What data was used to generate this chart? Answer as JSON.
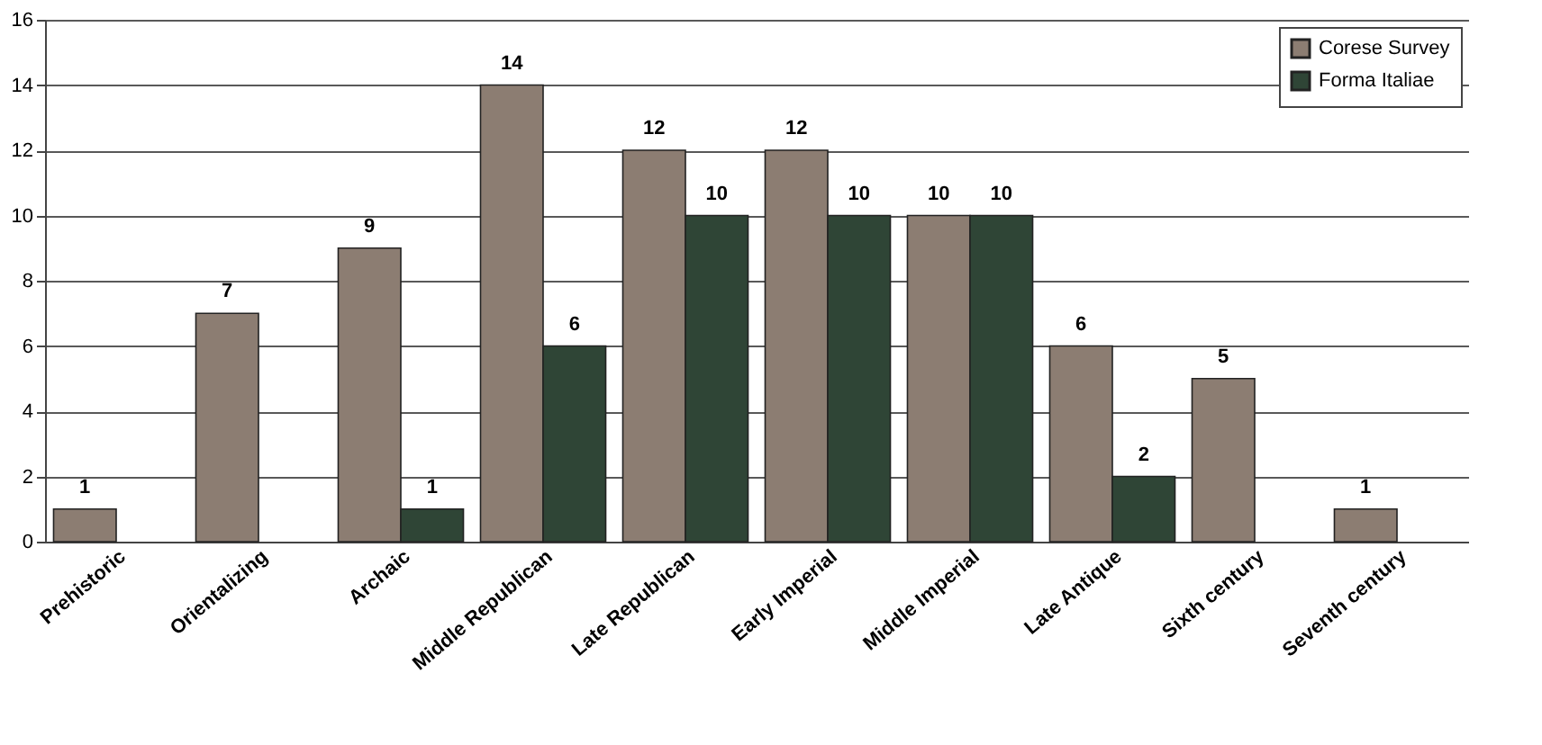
{
  "chart_data": {
    "type": "bar",
    "categories": [
      "Prehistoric",
      "Orientalizing",
      "Archaic",
      "Middle Republican",
      "Late Republican",
      "Early Imperial",
      "Middle Imperial",
      "Late Antique",
      "Sixth century",
      "Seventh century"
    ],
    "series": [
      {
        "name": "Corese Survey",
        "color": "#8c7d72",
        "values": [
          1,
          7,
          9,
          14,
          12,
          12,
          10,
          6,
          5,
          1
        ]
      },
      {
        "name": "Forma Italiae",
        "color": "#2f4536",
        "values": [
          null,
          null,
          1,
          6,
          10,
          10,
          10,
          2,
          null,
          null
        ]
      }
    ],
    "ylim": [
      0,
      16
    ],
    "yticks": [
      0,
      2,
      4,
      6,
      8,
      10,
      12,
      14,
      16
    ],
    "grid": "y",
    "legend": "top right",
    "data_labels": true
  }
}
